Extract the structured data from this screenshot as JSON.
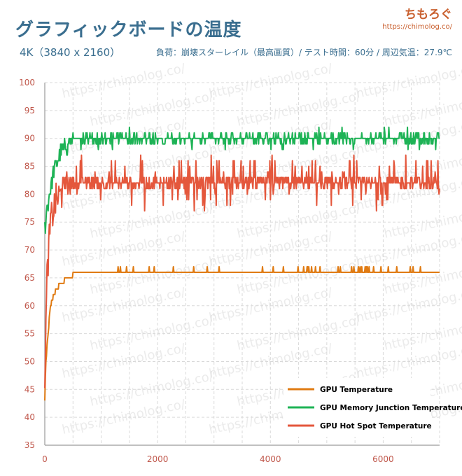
{
  "header": {
    "title": "グラフィックボードの温度",
    "subtitle_left": "4K（3840 x 2160）",
    "subtitle_right": "負荷：崩壊スターレイル（最高画質）/ テスト時間：60分 / 周辺気温：27.9℃"
  },
  "brand": {
    "name": "ちもろぐ",
    "url": "https://chimolog.co/"
  },
  "watermark_text": "https://chimolog.co/",
  "colors": {
    "background": "#ffffff",
    "grid": "#d9d9d9",
    "axis": "#9a9a9a",
    "tick_label": "#c0584c",
    "title": "#3a6e8f",
    "brand": "#c9602f"
  },
  "chart_data": {
    "type": "line",
    "x_range": [
      0,
      7000
    ],
    "ylim": [
      35,
      100
    ],
    "x_ticks": [
      0,
      2000,
      4000,
      6000
    ],
    "y_ticks": [
      35,
      40,
      45,
      50,
      55,
      60,
      65,
      70,
      75,
      80,
      85,
      90,
      95,
      100
    ],
    "grid": "dashed",
    "legend_position": "bottom-right",
    "series": [
      {
        "name": "GPU Temperature",
        "color": "#e07b13",
        "values_description": "rises from ~43 at t=0 to ~60 by t=100, ~65 by t=400, ~66 plateau from t=700 onward with spikes to 67",
        "keypoints": [
          [
            0,
            43
          ],
          [
            20,
            50
          ],
          [
            60,
            55
          ],
          [
            100,
            60
          ],
          [
            200,
            63
          ],
          [
            300,
            64
          ],
          [
            400,
            65
          ],
          [
            600,
            66
          ],
          [
            7000,
            66
          ]
        ],
        "plateau": 66,
        "spike": 67
      },
      {
        "name": "GPU Memory Junction Temperature",
        "color": "#1eb356",
        "keypoints": [
          [
            0,
            74
          ],
          [
            50,
            78
          ],
          [
            150,
            84
          ],
          [
            300,
            88
          ],
          [
            500,
            89
          ],
          [
            700,
            90
          ],
          [
            7000,
            90
          ]
        ],
        "plateau": 90,
        "spike_high": 92,
        "spike_low": 88
      },
      {
        "name": "GPU Hot Spot Temperature",
        "color": "#e4573c",
        "keypoints": [
          [
            0,
            48
          ],
          [
            40,
            65
          ],
          [
            100,
            75
          ],
          [
            200,
            79
          ],
          [
            400,
            81
          ],
          [
            700,
            82
          ],
          [
            7000,
            82
          ]
        ],
        "plateau": 82,
        "spike_high": 87,
        "spike_low": 77
      }
    ]
  }
}
